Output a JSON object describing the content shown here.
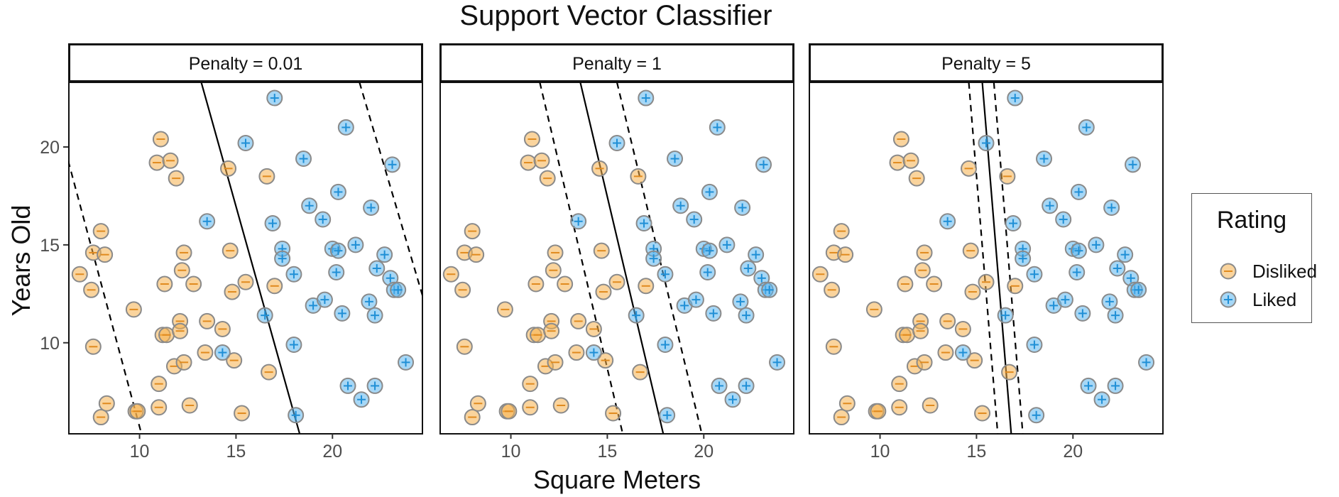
{
  "chart_data": {
    "type": "scatter",
    "title": "Support Vector Classifier",
    "xlabel": "Square Meters",
    "ylabel": "Years Old",
    "xlim": [
      6.3,
      24.7
    ],
    "ylim": [
      5.35,
      23.3
    ],
    "x_ticks": [
      10,
      15,
      20
    ],
    "y_ticks": [
      10,
      15,
      20
    ],
    "grid": false,
    "legend": {
      "title": "Rating",
      "position": "right",
      "entries": [
        {
          "label": "Disliked",
          "symbol": "minus",
          "color": "#F5B14C"
        },
        {
          "label": "Liked",
          "symbol": "plus",
          "color": "#5DB7EE"
        }
      ]
    },
    "panels": [
      {
        "label": "Penalty = 0.01",
        "boundary": [
          [
            13.2,
            23.3
          ],
          [
            18.3,
            5.35
          ]
        ],
        "margin_lower": [
          [
            6.3,
            19.3
          ],
          [
            10.1,
            5.35
          ]
        ],
        "margin_upper": [
          [
            21.4,
            23.3
          ],
          [
            24.7,
            12.3
          ]
        ]
      },
      {
        "label": "Penalty = 1",
        "boundary": [
          [
            13.6,
            23.3
          ],
          [
            17.9,
            5.35
          ]
        ],
        "margin_lower": [
          [
            11.5,
            23.3
          ],
          [
            15.8,
            5.35
          ]
        ],
        "margin_upper": [
          [
            15.5,
            23.3
          ],
          [
            19.9,
            5.35
          ]
        ]
      },
      {
        "label": "Penalty = 5",
        "boundary": [
          [
            15.3,
            23.3
          ],
          [
            16.8,
            5.35
          ]
        ],
        "margin_lower": [
          [
            14.6,
            23.3
          ],
          [
            16.1,
            5.35
          ]
        ],
        "margin_upper": [
          [
            15.9,
            23.3
          ],
          [
            17.4,
            5.35
          ]
        ]
      }
    ],
    "series": [
      {
        "name": "Disliked",
        "points": [
          [
            6.9,
            13.5
          ],
          [
            7.5,
            12.7
          ],
          [
            7.6,
            14.6
          ],
          [
            7.6,
            9.8
          ],
          [
            8.0,
            15.7
          ],
          [
            8.0,
            6.2
          ],
          [
            8.2,
            14.5
          ],
          [
            8.3,
            6.9
          ],
          [
            9.7,
            11.7
          ],
          [
            9.8,
            6.5
          ],
          [
            9.9,
            6.5
          ],
          [
            10.9,
            19.2
          ],
          [
            11.1,
            20.4
          ],
          [
            11.0,
            6.7
          ],
          [
            11.0,
            7.9
          ],
          [
            11.3,
            13.0
          ],
          [
            11.2,
            10.4
          ],
          [
            11.4,
            10.4
          ],
          [
            11.6,
            19.3
          ],
          [
            11.9,
            18.4
          ],
          [
            11.8,
            8.8
          ],
          [
            12.1,
            11.1
          ],
          [
            12.1,
            10.6
          ],
          [
            12.2,
            13.7
          ],
          [
            12.3,
            9.0
          ],
          [
            12.3,
            14.6
          ],
          [
            12.6,
            6.8
          ],
          [
            12.8,
            13.0
          ],
          [
            13.4,
            9.5
          ],
          [
            13.5,
            11.1
          ],
          [
            14.3,
            10.7
          ],
          [
            14.6,
            18.9
          ],
          [
            14.7,
            14.7
          ],
          [
            14.8,
            12.6
          ],
          [
            14.9,
            9.1
          ],
          [
            15.3,
            6.4
          ],
          [
            15.5,
            13.1
          ],
          [
            16.6,
            18.5
          ],
          [
            16.7,
            8.5
          ],
          [
            17.0,
            12.9
          ]
        ]
      },
      {
        "name": "Liked",
        "points": [
          [
            13.5,
            16.2
          ],
          [
            14.3,
            9.5
          ],
          [
            15.5,
            20.2
          ],
          [
            16.5,
            11.4
          ],
          [
            16.9,
            16.1
          ],
          [
            17.0,
            22.5
          ],
          [
            17.4,
            14.8
          ],
          [
            17.4,
            14.3
          ],
          [
            18.0,
            13.5
          ],
          [
            18.0,
            9.9
          ],
          [
            18.1,
            6.3
          ],
          [
            18.5,
            19.4
          ],
          [
            18.8,
            17.0
          ],
          [
            19.0,
            11.9
          ],
          [
            19.5,
            16.3
          ],
          [
            19.6,
            12.2
          ],
          [
            20.0,
            14.8
          ],
          [
            20.2,
            13.6
          ],
          [
            20.3,
            14.7
          ],
          [
            20.3,
            17.7
          ],
          [
            20.5,
            11.5
          ],
          [
            20.7,
            21.0
          ],
          [
            20.8,
            7.8
          ],
          [
            21.2,
            15.0
          ],
          [
            21.5,
            7.1
          ],
          [
            21.9,
            12.1
          ],
          [
            22.0,
            16.9
          ],
          [
            22.2,
            7.8
          ],
          [
            22.2,
            11.4
          ],
          [
            22.3,
            13.8
          ],
          [
            22.7,
            14.5
          ],
          [
            23.0,
            13.3
          ],
          [
            23.1,
            19.1
          ],
          [
            23.2,
            12.7
          ],
          [
            23.4,
            12.7
          ],
          [
            23.8,
            9.0
          ]
        ]
      }
    ]
  }
}
